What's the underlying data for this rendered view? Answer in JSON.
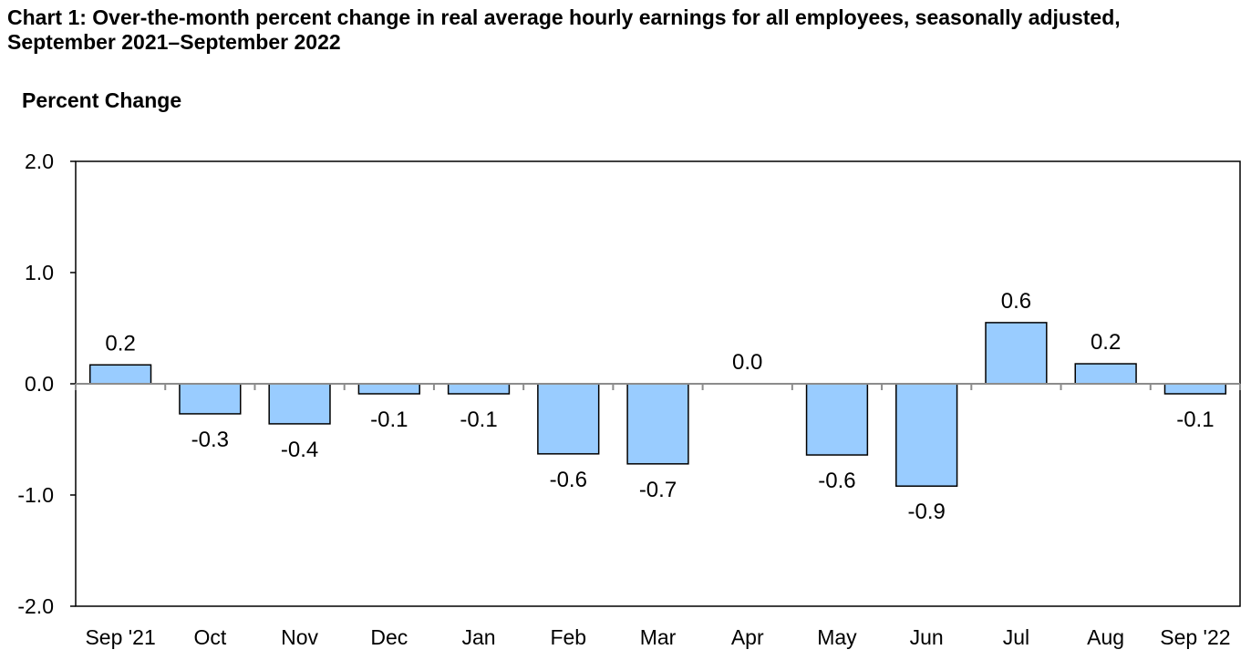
{
  "page": {
    "title": "Chart 1: Over-the-month percent change in real average hourly earnings for all employees, seasonally adjusted, September 2021–September 2022"
  },
  "chart_data": {
    "type": "bar",
    "title": "Chart 1: Over-the-month percent change in real average hourly earnings for all employees, seasonally adjusted, September 2021–September 2022",
    "ylabel": "Percent Change",
    "xlabel": "",
    "categories": [
      "Sep '21",
      "Oct",
      "Nov",
      "Dec",
      "Jan",
      "Feb",
      "Mar",
      "Apr",
      "May",
      "Jun",
      "Jul",
      "Aug",
      "Sep '22"
    ],
    "values": [
      0.17,
      -0.27,
      -0.36,
      -0.09,
      -0.09,
      -0.63,
      -0.72,
      0.0,
      -0.64,
      -0.92,
      0.55,
      0.18,
      -0.09
    ],
    "data_labels": [
      "0.2",
      "-0.3",
      "-0.4",
      "-0.1",
      "-0.1",
      "-0.6",
      "-0.7",
      "0.0",
      "-0.6",
      "-0.9",
      "0.6",
      "0.2",
      "-0.1"
    ],
    "ylim": [
      -2.0,
      2.0
    ],
    "yticks": [
      2.0,
      1.0,
      0.0,
      -1.0,
      -2.0
    ],
    "ytick_labels": [
      "2.0",
      "1.0",
      "0.0",
      "-1.0",
      "-2.0"
    ],
    "grid": false,
    "legend": "none",
    "colors": {
      "bar_fill": "#99CCFF",
      "bar_stroke": "#000000",
      "zero_line": "#8c8c8c",
      "axis": "#000000"
    }
  }
}
